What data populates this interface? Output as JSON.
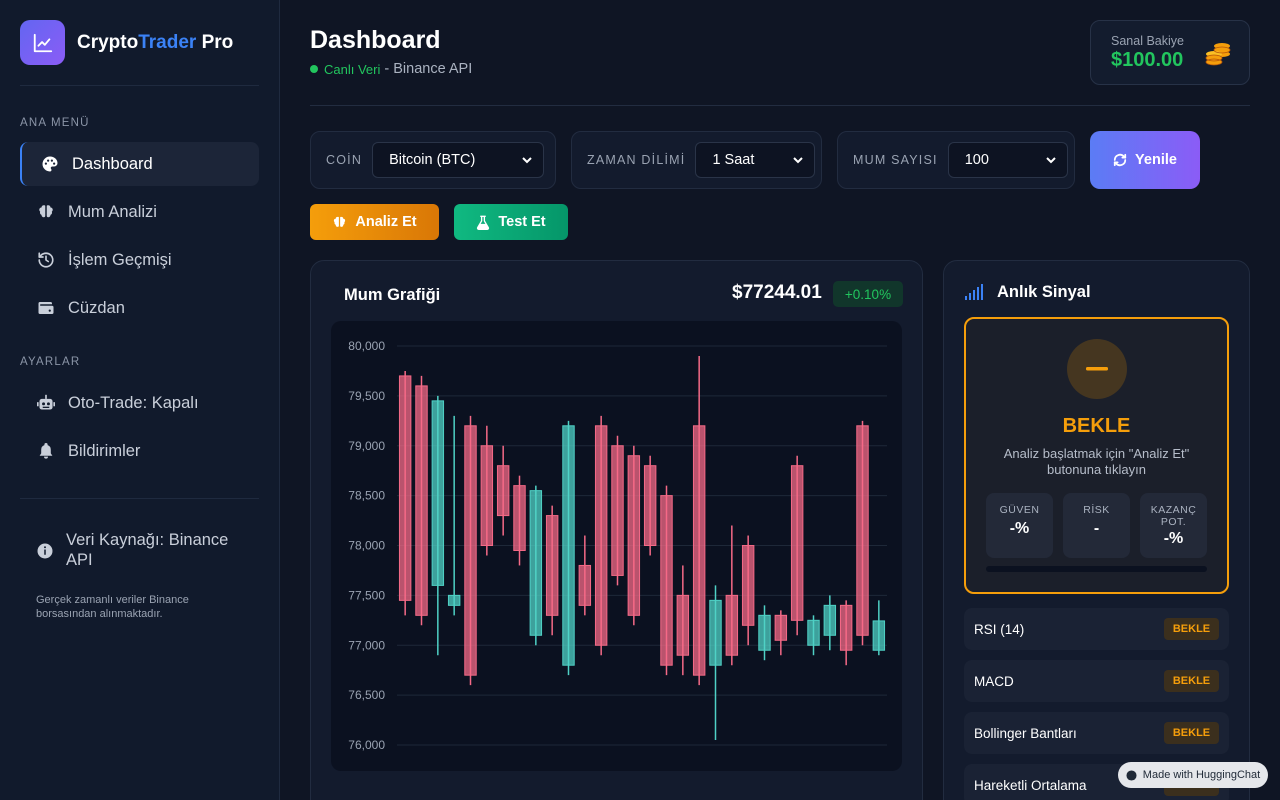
{
  "brand": {
    "part1": "Crypto",
    "part2": "Trader",
    "part3": " Pro",
    "logo_icon": "chart-line-icon"
  },
  "sidebar": {
    "main_menu_label": "ANA MENÜ",
    "items": [
      {
        "label": "Dashboard",
        "icon": "palette-icon",
        "active": true
      },
      {
        "label": "Mum Analizi",
        "icon": "brain-icon",
        "active": false
      },
      {
        "label": "İşlem Geçmişi",
        "icon": "history-icon",
        "active": false
      },
      {
        "label": "Cüzdan",
        "icon": "wallet-icon",
        "active": false
      }
    ],
    "settings_label": "AYARLAR",
    "settings_items": [
      {
        "label": "Oto-Trade: Kapalı",
        "icon": "robot-icon"
      },
      {
        "label": "Bildirimler",
        "icon": "bell-icon"
      }
    ],
    "source_title": "Veri Kaynağı: Binance API",
    "source_desc": "Gerçek zamanlı veriler Binance borsasından alınmaktadır."
  },
  "header": {
    "title": "Dashboard",
    "live_label": "Canlı Veri",
    "source_text": "- Binance API",
    "balance_label": "Sanal Bakiye",
    "balance_value": "$100.00"
  },
  "controls": {
    "coin_label": "COİN",
    "coin_value": "Bitcoin (BTC)",
    "timeframe_label": "ZAMAN DİLİMİ",
    "timeframe_value": "1 Saat",
    "candle_count_label": "MUM SAYISI",
    "candle_count_value": "100",
    "refresh_label": "Yenile",
    "analyze_label": "Analiz Et",
    "test_label": "Test Et"
  },
  "chart": {
    "title": "Mum Grafiği",
    "price": "$77244.01",
    "change": "+0.10%",
    "colors": {
      "up": "#4fd1c5",
      "down": "#f56a87",
      "grid": "#1e2838"
    }
  },
  "chart_data": {
    "type": "candlestick",
    "y_ticks": [
      "80,000",
      "79,500",
      "79,000",
      "78,500",
      "78,000",
      "77,500",
      "77,000",
      "76,500",
      "76,000"
    ],
    "ylim": [
      76000,
      80000
    ],
    "title": "Mum Grafiği",
    "candles": [
      {
        "o": 79700,
        "h": 79750,
        "l": 77300,
        "c": 77450
      },
      {
        "o": 79600,
        "h": 79700,
        "l": 77200,
        "c": 77300
      },
      {
        "o": 77600,
        "h": 79500,
        "l": 76900,
        "c": 79450
      },
      {
        "o": 77400,
        "h": 79300,
        "l": 77300,
        "c": 77500
      },
      {
        "o": 79200,
        "h": 79300,
        "l": 76600,
        "c": 76700
      },
      {
        "o": 79000,
        "h": 79200,
        "l": 77900,
        "c": 78000
      },
      {
        "o": 78800,
        "h": 79000,
        "l": 78100,
        "c": 78300
      },
      {
        "o": 78600,
        "h": 78700,
        "l": 77800,
        "c": 77950
      },
      {
        "o": 77100,
        "h": 78600,
        "l": 77000,
        "c": 78550
      },
      {
        "o": 78300,
        "h": 78400,
        "l": 77100,
        "c": 77300
      },
      {
        "o": 76800,
        "h": 79250,
        "l": 76700,
        "c": 79200
      },
      {
        "o": 77800,
        "h": 78100,
        "l": 77300,
        "c": 77400
      },
      {
        "o": 79200,
        "h": 79300,
        "l": 76900,
        "c": 77000
      },
      {
        "o": 79000,
        "h": 79100,
        "l": 77600,
        "c": 77700
      },
      {
        "o": 78900,
        "h": 79000,
        "l": 77200,
        "c": 77300
      },
      {
        "o": 78800,
        "h": 78900,
        "l": 77900,
        "c": 78000
      },
      {
        "o": 78500,
        "h": 78600,
        "l": 76700,
        "c": 76800
      },
      {
        "o": 77500,
        "h": 77800,
        "l": 76700,
        "c": 76900
      },
      {
        "o": 79200,
        "h": 79900,
        "l": 76600,
        "c": 76700
      },
      {
        "o": 76800,
        "h": 77600,
        "l": 76050,
        "c": 77450
      },
      {
        "o": 77500,
        "h": 78200,
        "l": 76800,
        "c": 76900
      },
      {
        "o": 78000,
        "h": 78100,
        "l": 77000,
        "c": 77200
      },
      {
        "o": 76950,
        "h": 77400,
        "l": 76850,
        "c": 77300
      },
      {
        "o": 77300,
        "h": 77350,
        "l": 76900,
        "c": 77050
      },
      {
        "o": 78800,
        "h": 78900,
        "l": 77100,
        "c": 77250
      },
      {
        "o": 77000,
        "h": 77300,
        "l": 76900,
        "c": 77250
      },
      {
        "o": 77100,
        "h": 77500,
        "l": 76950,
        "c": 77400
      },
      {
        "o": 77400,
        "h": 77450,
        "l": 76800,
        "c": 76950
      },
      {
        "o": 79200,
        "h": 79250,
        "l": 77000,
        "c": 77100
      },
      {
        "o": 76950,
        "h": 77450,
        "l": 76900,
        "c": 77244
      }
    ]
  },
  "signal": {
    "title": "Anlık Sinyal",
    "status": "BEKLE",
    "description": "Analiz başlatmak için \"Analiz Et\" butonuna tıklayın",
    "metrics": [
      {
        "label": "GÜVEN",
        "value": "-%"
      },
      {
        "label": "RİSK",
        "value": "-"
      },
      {
        "label": "KAZANÇ POT.",
        "value": "-%"
      }
    ],
    "indicators": [
      {
        "name": "RSI (14)",
        "status": "BEKLE"
      },
      {
        "name": "MACD",
        "status": "BEKLE"
      },
      {
        "name": "Bollinger Bantları",
        "status": "BEKLE"
      },
      {
        "name": "Hareketli Ortalama",
        "status": "BEKLE"
      }
    ]
  },
  "footer_badge": "Made with HuggingChat",
  "colors": {
    "accent": "#3b82f6",
    "success": "#22c55e",
    "warning": "#f59e0b"
  }
}
